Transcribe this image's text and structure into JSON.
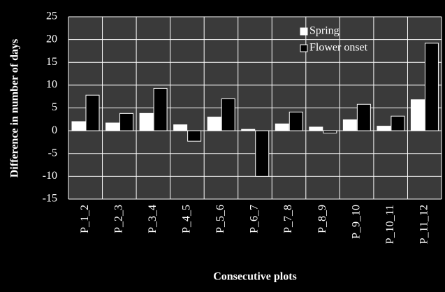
{
  "chart_data": {
    "type": "bar",
    "x_label": "Consecutive plots",
    "y_label": "Difference in number of days",
    "categories": [
      "P_1_2",
      "P_2_3",
      "P_3_4",
      "P_4_5",
      "P_5_6",
      "P_6_7",
      "P_7_8",
      "P_8_9",
      "P_9_10",
      "P_10_11",
      "P_11_12"
    ],
    "series": [
      {
        "name": "Spring",
        "color": "#ffffff",
        "values": [
          2,
          1.7,
          3.8,
          1.3,
          3,
          0.3,
          1.5,
          0.8,
          2.4,
          1,
          6.8
        ]
      },
      {
        "name": "Flower onset",
        "color": "#000000",
        "values": [
          7.8,
          3.8,
          9.3,
          -2.3,
          7,
          -10,
          4.1,
          -0.5,
          5.8,
          3.2,
          19.2
        ]
      }
    ],
    "ylim": [
      -15,
      25
    ],
    "yticks": [
      -15,
      -10,
      -5,
      0,
      5,
      10,
      15,
      20,
      25
    ],
    "grid": true
  }
}
